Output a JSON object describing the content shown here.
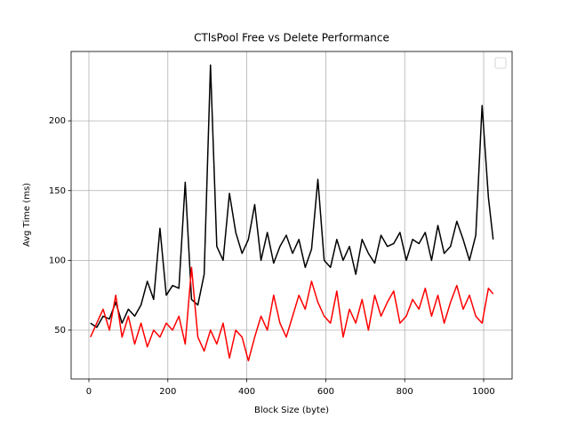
{
  "chart_data": {
    "type": "line",
    "title": "CTlsPool Free vs Delete Performance",
    "x_label": "Block Size (byte)",
    "y_label": "Avg Time (ms)",
    "x": [
      4,
      20,
      36,
      52,
      68,
      84,
      100,
      116,
      132,
      148,
      164,
      180,
      196,
      212,
      228,
      244,
      260,
      276,
      292,
      308,
      324,
      340,
      356,
      372,
      388,
      404,
      420,
      436,
      452,
      468,
      484,
      500,
      516,
      532,
      548,
      564,
      580,
      596,
      612,
      628,
      644,
      660,
      676,
      692,
      708,
      724,
      740,
      756,
      772,
      788,
      804,
      820,
      836,
      852,
      868,
      884,
      900,
      916,
      932,
      948,
      964,
      980,
      996,
      1012,
      1024
    ],
    "series": [
      {
        "color": "#000000",
        "values": [
          55,
          52,
          60,
          58,
          70,
          55,
          65,
          60,
          68,
          85,
          72,
          123,
          75,
          82,
          80,
          156,
          72,
          68,
          90,
          240,
          110,
          100,
          148,
          120,
          105,
          115,
          140,
          100,
          120,
          98,
          110,
          118,
          105,
          115,
          95,
          108,
          158,
          100,
          95,
          115,
          100,
          110,
          90,
          115,
          105,
          98,
          118,
          110,
          112,
          120,
          100,
          115,
          112,
          120,
          100,
          125,
          105,
          110,
          128,
          115,
          100,
          118,
          211,
          145,
          115
        ]
      },
      {
        "color": "#ff0000",
        "values": [
          45,
          55,
          65,
          50,
          75,
          45,
          60,
          40,
          55,
          38,
          50,
          45,
          55,
          50,
          60,
          40,
          95,
          45,
          35,
          50,
          40,
          55,
          30,
          50,
          45,
          28,
          45,
          60,
          50,
          75,
          55,
          45,
          60,
          75,
          65,
          85,
          70,
          60,
          55,
          78,
          45,
          65,
          55,
          72,
          50,
          75,
          60,
          70,
          78,
          55,
          60,
          72,
          65,
          80,
          60,
          75,
          55,
          70,
          82,
          65,
          75,
          60,
          55,
          80,
          76
        ]
      }
    ],
    "xlim": [
      -45,
      1072
    ],
    "ylim": [
      15,
      249.7
    ],
    "xticks": [
      0,
      200,
      400,
      600,
      800,
      1000
    ],
    "yticks": [
      50,
      100,
      150,
      200
    ],
    "grid": true,
    "legend": "upper right"
  }
}
